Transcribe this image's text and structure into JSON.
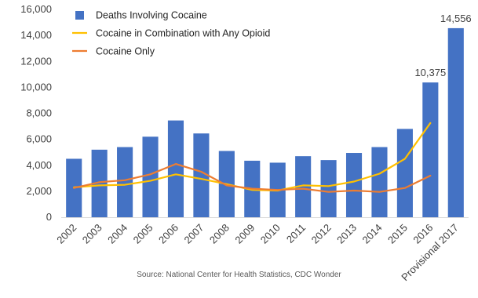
{
  "chart_data": {
    "type": "bar",
    "categories": [
      "2002",
      "2003",
      "2004",
      "2005",
      "2006",
      "2007",
      "2008",
      "2009",
      "2010",
      "2011",
      "2012",
      "2013",
      "2014",
      "2015",
      "2016",
      "Provisional 2017"
    ],
    "ylim": [
      0,
      16000
    ],
    "yticks": [
      "0",
      "2,000",
      "4,000",
      "6,000",
      "8,000",
      "10,000",
      "12,000",
      "14,000",
      "16,000"
    ],
    "ytick_values": [
      0,
      2000,
      4000,
      6000,
      8000,
      10000,
      12000,
      14000,
      16000
    ],
    "series": [
      {
        "name": "Deaths Involving Cocaine",
        "kind": "bar",
        "color": "#4472C4",
        "values": [
          4500,
          5200,
          5400,
          6200,
          7450,
          6450,
          5100,
          4350,
          4200,
          4700,
          4400,
          4950,
          5400,
          6800,
          10375,
          14556
        ]
      },
      {
        "name": "Cocaine in Combination with Any Opioid",
        "kind": "line",
        "color": "#FFC000",
        "values": [
          2300,
          2450,
          2500,
          2800,
          3300,
          2950,
          2550,
          2100,
          2050,
          2450,
          2400,
          2750,
          3350,
          4500,
          7250,
          null
        ]
      },
      {
        "name": "Cocaine Only",
        "kind": "line",
        "color": "#ED7D31",
        "values": [
          2250,
          2700,
          2850,
          3300,
          4100,
          3500,
          2450,
          2200,
          2100,
          2200,
          1950,
          2050,
          1950,
          2250,
          3200,
          null
        ]
      }
    ],
    "data_labels": [
      {
        "category_index": 14,
        "text": "10,375"
      },
      {
        "category_index": 15,
        "text": "14,556"
      }
    ],
    "legend_position": "top-left",
    "grid": false
  },
  "source_text": "Source: National Center for Health Statistics, CDC Wonder"
}
